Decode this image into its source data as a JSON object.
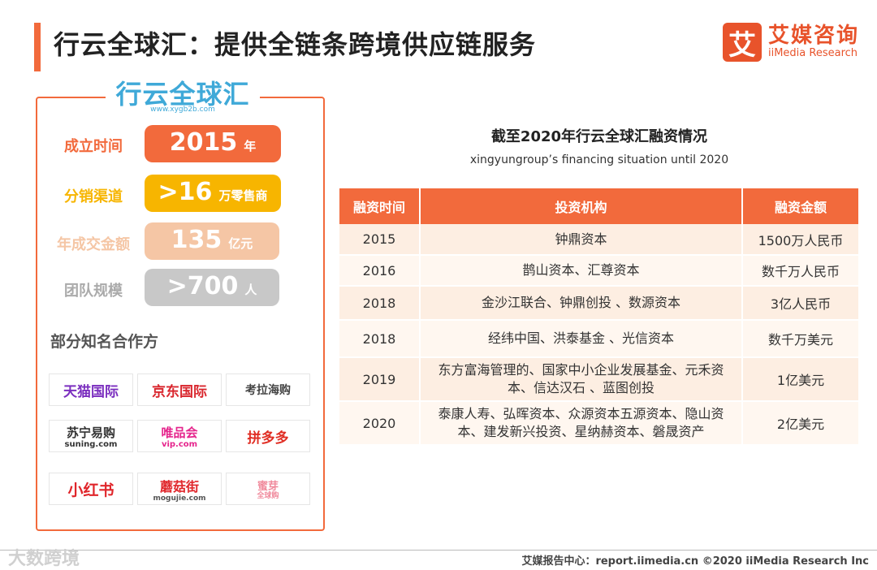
{
  "header": {
    "title": "行云全球汇：提供全链条跨境供应链服务",
    "brand_cn": "艾媒咨询",
    "brand_en": "iiMedia Research",
    "brand_glyph": "艾"
  },
  "company": {
    "logo_text_a": "行云",
    "logo_text_b": "全球汇",
    "logo_url": "www.xygb2b.com"
  },
  "stats": [
    {
      "label": "成立时间",
      "value": "2015",
      "unit": "年",
      "color": "#f26a3c"
    },
    {
      "label": "分销渠道",
      "value": ">16",
      "unit": "万零售商",
      "color": "#f7b500"
    },
    {
      "label": "年成交金额",
      "value": "135",
      "unit": "亿元",
      "color": "#f5c6a5"
    },
    {
      "label": "团队规模",
      "value": ">700",
      "unit": "人",
      "color": "#c8c8c8"
    }
  ],
  "partners": {
    "title": "部分知名合作方",
    "logos": [
      "天猫国际",
      "京东国际",
      "考拉海购",
      "苏宁易购",
      "唯品会",
      "拼多多",
      "小红书",
      "蘑菇街",
      "蜜芽"
    ],
    "logo_subs": [
      "",
      "",
      "",
      "suning.com",
      "vip.com",
      "",
      "",
      "mogujie.com",
      "全球购"
    ]
  },
  "table": {
    "title": "截至2020年行云全球汇融资情况",
    "subtitle": "xingyungroup’s financing situation until 2020",
    "headers": [
      "融资时间",
      "投资机构",
      "融资金额"
    ],
    "rows": [
      [
        "2015",
        "钟鼎资本",
        "1500万人民币"
      ],
      [
        "2016",
        "鹊山资本、汇尊资本",
        "数千万人民币"
      ],
      [
        "2018",
        "金沙江联合、钟鼎创投 、数源资本",
        "3亿人民币"
      ],
      [
        "2018",
        "经纬中国、洪泰基金 、光信资本",
        "数千万美元"
      ],
      [
        "2019",
        "东方富海管理的、国家中小企业发展基金、元禾资本、信达汉石 、蓝图创投",
        "1亿美元"
      ],
      [
        "2020",
        "泰康人寿、弘晖资本、众源资本五源资本、隐山资本、建发新兴投资、星纳赫资本、磐晟资产",
        "2亿美元"
      ]
    ]
  },
  "footer": {
    "watermark": "大数跨境",
    "text": "艾媒报告中心：report.iimedia.cn  ©2020  iiMedia Research  Inc"
  }
}
